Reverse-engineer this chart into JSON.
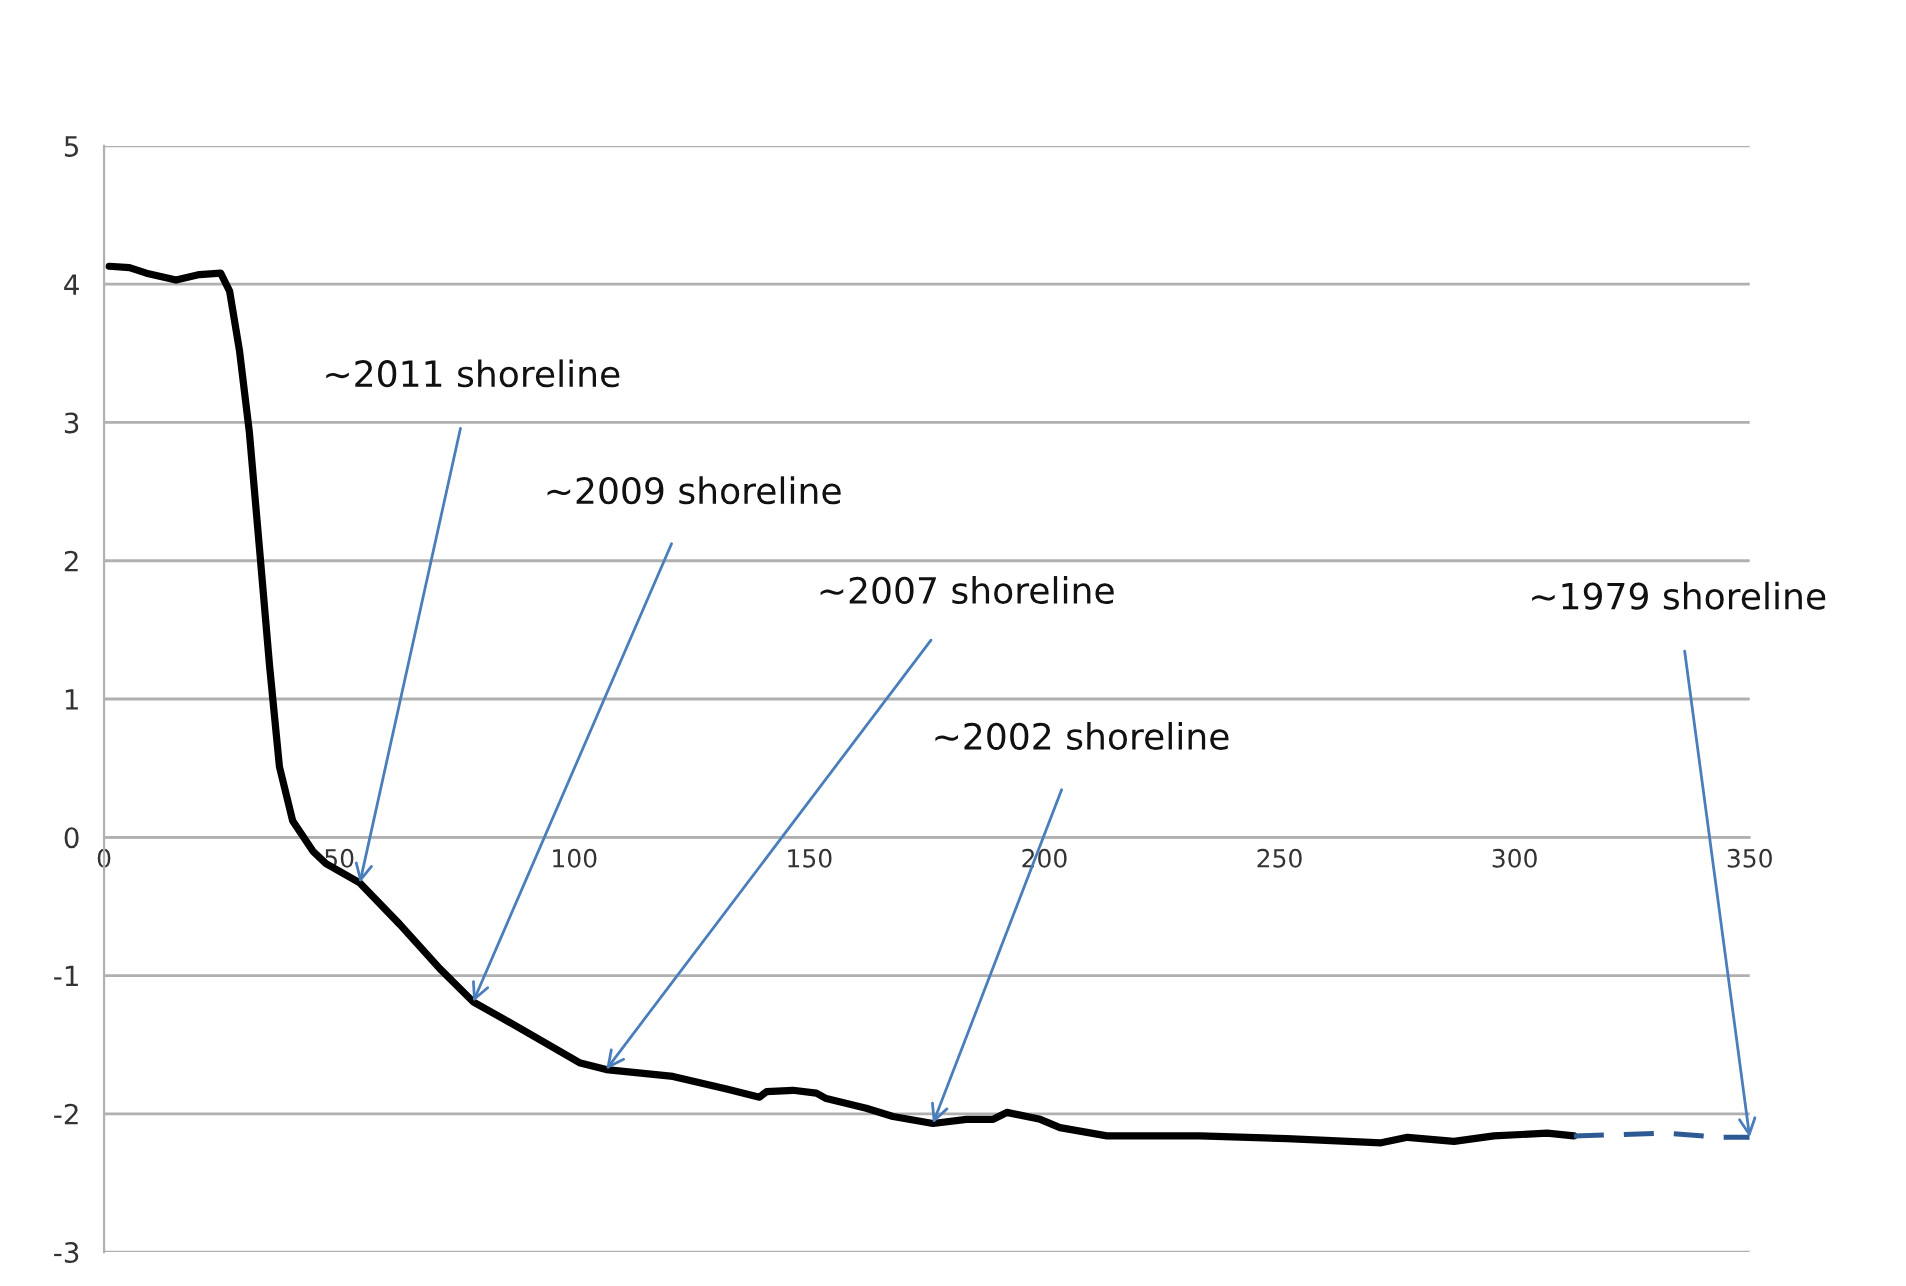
{
  "chart_data": {
    "type": "line",
    "series": [
      {
        "color": "#000000",
        "line_style": "solid",
        "x": [
          1.1,
          5.4,
          9,
          15.3,
          20.3,
          24.8,
          26.7,
          28.8,
          30.9,
          33,
          35.2,
          37.3,
          40.1,
          44.4,
          47.2,
          54.4,
          62.9,
          71.4,
          78.5,
          88.4,
          101.1,
          106.8,
          121,
          132.4,
          139.4,
          140.9,
          146.5,
          151.5,
          153.6,
          162.1,
          167.8,
          176.3,
          183.4,
          189.1,
          192,
          199.1,
          203.3,
          213.3,
          233.1,
          251.6,
          271.6,
          277.2,
          287.1,
          295.6,
          306.9,
          312.6
        ],
        "values": [
          4.13,
          4.12,
          4.08,
          4.03,
          4.07,
          4.08,
          3.95,
          3.52,
          2.93,
          2.11,
          1.24,
          0.51,
          0.12,
          -0.1,
          -0.19,
          -0.33,
          -0.63,
          -0.95,
          -1.19,
          -1.38,
          -1.63,
          -1.68,
          -1.73,
          -1.82,
          -1.88,
          -1.84,
          -1.83,
          -1.85,
          -1.89,
          -1.96,
          -2.02,
          -2.07,
          -2.04,
          -2.04,
          -1.99,
          -2.04,
          -2.1,
          -2.16,
          -2.16,
          -2.18,
          -2.21,
          -2.17,
          -2.2,
          -2.16,
          -2.14,
          -2.16
        ]
      },
      {
        "color": "#2e5a94",
        "line_style": "dashed",
        "x": [
          312.6,
          332.4,
          343.8,
          350
        ],
        "values": [
          -2.16,
          -2.14,
          -2.17,
          -2.17
        ]
      }
    ],
    "xlim": [
      0,
      350
    ],
    "xticks": [
      0,
      50,
      100,
      150,
      200,
      250,
      300,
      350
    ],
    "ylim": [
      -3,
      5
    ],
    "yticks": [
      -3,
      -2,
      -1,
      0,
      1,
      2,
      3,
      4,
      5
    ],
    "grid": "y",
    "annotations": [
      {
        "text": "~2011 shoreline",
        "x": 54.4,
        "y": -0.33
      },
      {
        "text": "~2009 shoreline",
        "x": 78.5,
        "y": -1.19
      },
      {
        "text": "~2007 shoreline",
        "x": 106.8,
        "y": -1.68
      },
      {
        "text": "~2002 shoreline",
        "x": 176.3,
        "y": -2.07
      },
      {
        "text": "~1979 shoreline",
        "x": 350,
        "y": -2.17
      }
    ]
  }
}
